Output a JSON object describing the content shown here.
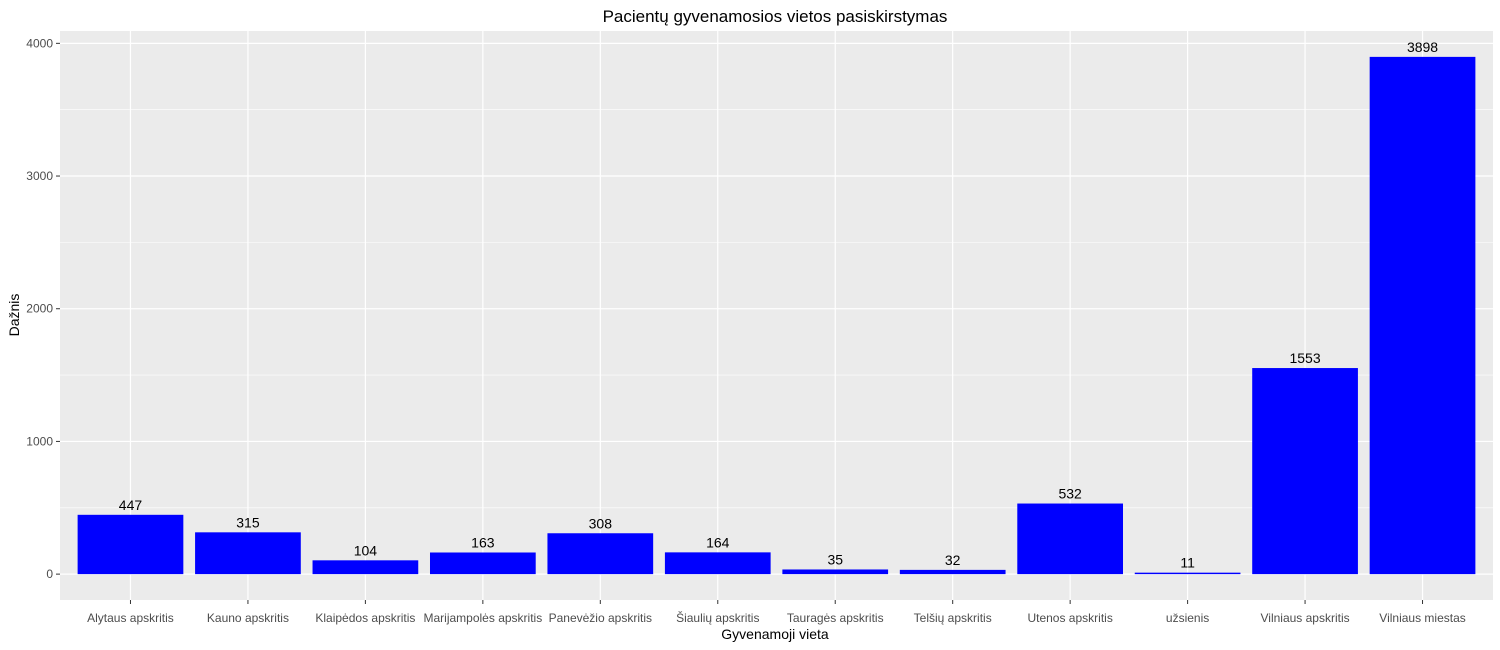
{
  "chart_data": {
    "type": "bar",
    "title": "Pacientų gyvenamosios vietos pasiskirstymas",
    "xlabel": "Gyvenamoji vieta",
    "ylabel": "Dažnis",
    "categories": [
      "Alytaus apskritis",
      "Kauno apskritis",
      "Klaipėdos apskritis",
      "Marijampolės apskritis",
      "Panevėžio apskritis",
      "Šiaulių apskritis",
      "Tauragės apskritis",
      "Telšių apskritis",
      "Utenos apskritis",
      "užsienis",
      "Vilniaus apskritis",
      "Vilniaus miestas"
    ],
    "values": [
      447,
      315,
      104,
      163,
      308,
      164,
      35,
      32,
      532,
      11,
      1553,
      3898
    ],
    "value_labels": [
      "447",
      "315",
      "104",
      "163",
      "308",
      "164",
      "35",
      "32",
      "532",
      "11",
      "1553",
      "3898"
    ],
    "ylim": [
      -195,
      4093
    ],
    "yticks": [
      0,
      1000,
      2000,
      3000,
      4000
    ],
    "ytick_labels": [
      "0",
      "1000",
      "2000",
      "3000",
      "4000"
    ],
    "grid": true,
    "legend": "none",
    "colors": {
      "bar": "#0000ff",
      "panel": "#ebebeb",
      "grid": "#ffffff",
      "tick_text": "#4d4d4d",
      "text": "#000000"
    }
  }
}
